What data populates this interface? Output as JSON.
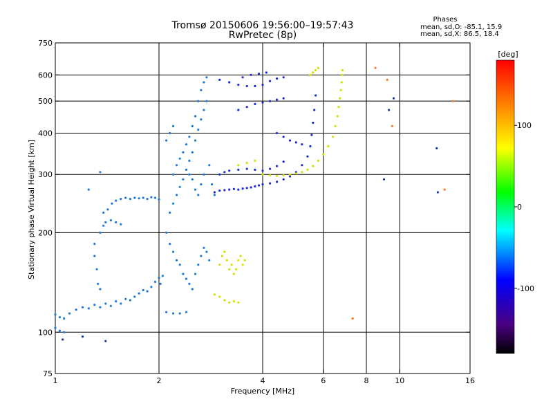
{
  "chart_data": {
    "type": "scatter",
    "title": "Tromsø 20150606 19:56:00–19:57:43",
    "subtitle": "RwPretec (8p)",
    "xlabel": "Frequency [MHz]",
    "ylabel": "Stationary phase Virtual Height [km]",
    "x_scale": "log",
    "y_scale": "log",
    "xlim": [
      1,
      16
    ],
    "ylim": [
      75,
      750
    ],
    "x_ticks": [
      1,
      2,
      4,
      6,
      8,
      10,
      16
    ],
    "x_tick_labels": [
      "1",
      "2",
      "4",
      "6",
      "8",
      "10",
      "16"
    ],
    "y_ticks": [
      75,
      100,
      200,
      300,
      400,
      500,
      600,
      750
    ],
    "y_tick_labels": [
      "75",
      "100",
      "200",
      "300",
      "400",
      "500",
      "600",
      "750"
    ],
    "x_gridlines": [
      2,
      4,
      6,
      8,
      10
    ],
    "y_gridlines": [
      100,
      200,
      300,
      400,
      500,
      600
    ],
    "phase_info": {
      "heading": "Phases",
      "line_o": "mean, sd,O: -85.1, 15.9",
      "line_x": "mean, sd,X: 86.5, 18.4"
    },
    "colorbar": {
      "label": "[deg]",
      "range": [
        -180,
        180
      ],
      "ticks": [
        100,
        0,
        -100
      ],
      "tick_labels": [
        "100",
        "0",
        "-100"
      ]
    },
    "series": [
      {
        "phase": -100,
        "color": "#1e7ad8",
        "points": [
          [
            1.0,
            113
          ],
          [
            1.03,
            111
          ],
          [
            1.06,
            110
          ],
          [
            1.1,
            114
          ],
          [
            1.15,
            117
          ],
          [
            1.2,
            119
          ],
          [
            1.25,
            118
          ],
          [
            1.3,
            121
          ],
          [
            1.35,
            119
          ],
          [
            1.4,
            122
          ],
          [
            1.45,
            120
          ],
          [
            1.5,
            124
          ],
          [
            1.55,
            122
          ],
          [
            1.6,
            126
          ],
          [
            1.65,
            125
          ],
          [
            1.7,
            128
          ],
          [
            1.75,
            131
          ],
          [
            1.8,
            134
          ],
          [
            1.85,
            133
          ],
          [
            1.9,
            137
          ],
          [
            1.95,
            142
          ],
          [
            2.0,
            146
          ],
          [
            2.02,
            140
          ],
          [
            2.05,
            148
          ],
          [
            2.1,
            115
          ],
          [
            2.2,
            114
          ],
          [
            2.3,
            114
          ],
          [
            2.4,
            115
          ],
          [
            1.0,
            103
          ],
          [
            1.03,
            101
          ],
          [
            1.06,
            100
          ],
          [
            1.3,
            170
          ],
          [
            1.32,
            155
          ],
          [
            1.33,
            140
          ],
          [
            1.35,
            135
          ],
          [
            1.3,
            185
          ],
          [
            1.35,
            200
          ],
          [
            1.38,
            210
          ],
          [
            1.4,
            215
          ],
          [
            1.45,
            218
          ],
          [
            1.5,
            215
          ],
          [
            1.55,
            212
          ],
          [
            1.38,
            230
          ],
          [
            1.42,
            235
          ],
          [
            1.46,
            245
          ],
          [
            1.5,
            250
          ],
          [
            1.55,
            253
          ],
          [
            1.6,
            255
          ],
          [
            1.65,
            253
          ],
          [
            1.7,
            255
          ],
          [
            1.75,
            254
          ],
          [
            1.8,
            255
          ],
          [
            1.85,
            253
          ],
          [
            1.9,
            256
          ],
          [
            1.95,
            255
          ],
          [
            2.0,
            252
          ],
          [
            1.35,
            305
          ],
          [
            1.25,
            270
          ],
          [
            2.1,
            200
          ],
          [
            2.15,
            185
          ],
          [
            2.2,
            175
          ],
          [
            2.25,
            165
          ],
          [
            2.3,
            160
          ],
          [
            2.35,
            150
          ],
          [
            2.4,
            145
          ],
          [
            2.45,
            140
          ],
          [
            2.5,
            135
          ],
          [
            2.55,
            150
          ],
          [
            2.6,
            160
          ],
          [
            2.65,
            170
          ],
          [
            2.7,
            180
          ],
          [
            2.75,
            175
          ],
          [
            2.8,
            165
          ],
          [
            2.15,
            230
          ],
          [
            2.2,
            245
          ],
          [
            2.25,
            260
          ],
          [
            2.3,
            275
          ],
          [
            2.35,
            290
          ],
          [
            2.4,
            310
          ],
          [
            2.45,
            330
          ],
          [
            2.5,
            350
          ],
          [
            2.55,
            380
          ],
          [
            2.6,
            410
          ],
          [
            2.65,
            440
          ],
          [
            2.7,
            470
          ],
          [
            2.75,
            500
          ],
          [
            2.2,
            300
          ],
          [
            2.25,
            320
          ],
          [
            2.3,
            335
          ],
          [
            2.35,
            350
          ],
          [
            2.4,
            370
          ],
          [
            2.45,
            390
          ],
          [
            2.5,
            420
          ],
          [
            2.55,
            450
          ],
          [
            2.6,
            500
          ],
          [
            2.65,
            540
          ],
          [
            2.7,
            570
          ],
          [
            2.75,
            590
          ],
          [
            2.1,
            380
          ],
          [
            2.15,
            400
          ],
          [
            2.2,
            420
          ],
          [
            2.45,
            300
          ],
          [
            2.5,
            290
          ],
          [
            2.55,
            270
          ],
          [
            2.6,
            260
          ],
          [
            2.65,
            280
          ],
          [
            2.7,
            300
          ],
          [
            2.8,
            320
          ],
          [
            2.85,
            280
          ],
          [
            2.9,
            260
          ]
        ]
      },
      {
        "phase": -120,
        "color": "#1a2ad6",
        "points": [
          [
            2.9,
            265
          ],
          [
            3.0,
            268
          ],
          [
            3.1,
            269
          ],
          [
            3.2,
            270
          ],
          [
            3.3,
            271
          ],
          [
            3.4,
            270
          ],
          [
            3.5,
            272
          ],
          [
            3.6,
            273
          ],
          [
            3.7,
            274
          ],
          [
            3.8,
            276
          ],
          [
            3.9,
            278
          ],
          [
            4.0,
            280
          ],
          [
            4.2,
            282
          ],
          [
            4.4,
            285
          ],
          [
            4.6,
            290
          ],
          [
            4.8,
            296
          ],
          [
            5.0,
            305
          ],
          [
            5.2,
            320
          ],
          [
            5.4,
            340
          ],
          [
            5.5,
            365
          ],
          [
            5.55,
            395
          ],
          [
            5.6,
            430
          ],
          [
            5.65,
            470
          ],
          [
            5.7,
            520
          ],
          [
            3.0,
            300
          ],
          [
            3.1,
            305
          ],
          [
            3.2,
            308
          ],
          [
            3.4,
            310
          ],
          [
            3.6,
            312
          ],
          [
            3.8,
            310
          ],
          [
            4.0,
            308
          ],
          [
            4.2,
            312
          ],
          [
            4.4,
            318
          ],
          [
            4.6,
            328
          ],
          [
            3.0,
            580
          ],
          [
            3.2,
            570
          ],
          [
            3.4,
            560
          ],
          [
            3.6,
            555
          ],
          [
            3.8,
            555
          ],
          [
            4.0,
            560
          ],
          [
            4.2,
            575
          ],
          [
            4.4,
            585
          ],
          [
            4.6,
            590
          ],
          [
            3.4,
            470
          ],
          [
            3.6,
            480
          ],
          [
            3.8,
            490
          ],
          [
            4.0,
            495
          ],
          [
            4.2,
            500
          ],
          [
            4.4,
            505
          ],
          [
            4.6,
            510
          ],
          [
            4.4,
            400
          ],
          [
            4.6,
            390
          ],
          [
            4.8,
            380
          ],
          [
            5.0,
            375
          ],
          [
            5.2,
            370
          ],
          [
            3.5,
            590
          ],
          [
            3.7,
            600
          ],
          [
            3.9,
            605
          ],
          [
            4.1,
            610
          ]
        ]
      },
      {
        "phase": 90,
        "color": "#d6e000",
        "points": [
          [
            4.0,
            300
          ],
          [
            4.2,
            298
          ],
          [
            4.4,
            297
          ],
          [
            4.6,
            298
          ],
          [
            4.8,
            300
          ],
          [
            5.0,
            302
          ],
          [
            5.2,
            305
          ],
          [
            5.4,
            310
          ],
          [
            5.6,
            318
          ],
          [
            5.8,
            330
          ],
          [
            6.0,
            345
          ],
          [
            6.2,
            365
          ],
          [
            6.4,
            390
          ],
          [
            6.5,
            420
          ],
          [
            6.6,
            450
          ],
          [
            6.65,
            480
          ],
          [
            6.7,
            510
          ],
          [
            6.75,
            540
          ],
          [
            6.78,
            570
          ],
          [
            6.8,
            600
          ],
          [
            6.82,
            620
          ],
          [
            3.0,
            160
          ],
          [
            3.05,
            170
          ],
          [
            3.1,
            175
          ],
          [
            3.15,
            165
          ],
          [
            3.2,
            155
          ],
          [
            3.25,
            160
          ],
          [
            3.3,
            150
          ],
          [
            3.35,
            155
          ],
          [
            3.4,
            165
          ],
          [
            3.45,
            170
          ],
          [
            3.5,
            160
          ],
          [
            3.55,
            165
          ],
          [
            2.9,
            130
          ],
          [
            3.0,
            128
          ],
          [
            3.1,
            125
          ],
          [
            3.2,
            123
          ],
          [
            3.3,
            124
          ],
          [
            3.4,
            123
          ],
          [
            3.4,
            320
          ],
          [
            3.6,
            325
          ],
          [
            3.8,
            330
          ],
          [
            5.5,
            600
          ],
          [
            5.6,
            610
          ],
          [
            5.7,
            620
          ],
          [
            5.8,
            630
          ]
        ]
      },
      {
        "phase": 140,
        "color": "#ff7a2a",
        "points": [
          [
            7.3,
            110
          ],
          [
            8.5,
            630
          ],
          [
            9.2,
            580
          ],
          [
            9.5,
            420
          ],
          [
            13.5,
            270
          ],
          [
            14.3,
            500
          ]
        ]
      },
      {
        "phase": -110,
        "color": "#223a9a",
        "points": [
          [
            1.05,
            95
          ],
          [
            1.2,
            97
          ],
          [
            1.4,
            94
          ],
          [
            9.0,
            290
          ],
          [
            9.3,
            470
          ],
          [
            12.9,
            265
          ],
          [
            12.8,
            360
          ],
          [
            9.6,
            510
          ]
        ]
      }
    ]
  }
}
